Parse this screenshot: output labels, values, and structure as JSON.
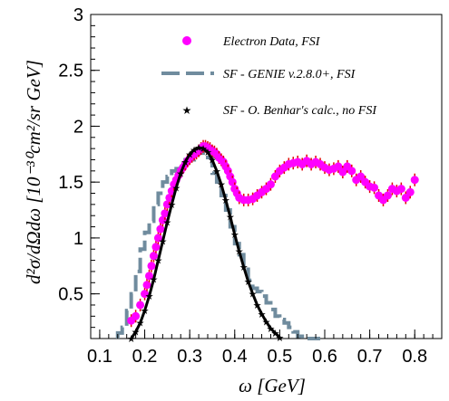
{
  "chart_data": {
    "type": "scatter",
    "title": "",
    "xlabel": "ω [GeV]",
    "ylabel": "d²σ/dΩdω [10⁻³⁰cm²/sr GeV]",
    "xlim": [
      0.08,
      0.86
    ],
    "ylim": [
      0.1,
      3.0
    ],
    "xticks": [
      "0.1",
      "0.2",
      "0.3",
      "0.4",
      "0.5",
      "0.6",
      "0.7",
      "0.8"
    ],
    "yticks": [
      "0.5",
      "1",
      "1.5",
      "2",
      "2.5",
      "3"
    ],
    "grid": false,
    "legend_position": "top-right",
    "series": [
      {
        "name": "Electron Data, FSI",
        "style": "markers",
        "color": "#ff00ff",
        "x": [
          0.17,
          0.18,
          0.19,
          0.2,
          0.205,
          0.21,
          0.215,
          0.22,
          0.225,
          0.23,
          0.235,
          0.24,
          0.245,
          0.25,
          0.255,
          0.26,
          0.265,
          0.27,
          0.275,
          0.28,
          0.285,
          0.29,
          0.295,
          0.3,
          0.305,
          0.31,
          0.315,
          0.32,
          0.325,
          0.33,
          0.335,
          0.34,
          0.345,
          0.35,
          0.355,
          0.36,
          0.365,
          0.37,
          0.375,
          0.38,
          0.385,
          0.39,
          0.395,
          0.4,
          0.405,
          0.41,
          0.42,
          0.43,
          0.44,
          0.45,
          0.46,
          0.47,
          0.48,
          0.49,
          0.5,
          0.51,
          0.52,
          0.53,
          0.54,
          0.55,
          0.56,
          0.57,
          0.58,
          0.59,
          0.6,
          0.61,
          0.62,
          0.63,
          0.64,
          0.65,
          0.66,
          0.67,
          0.68,
          0.69,
          0.7,
          0.71,
          0.72,
          0.73,
          0.74,
          0.75,
          0.76,
          0.77,
          0.78,
          0.79,
          0.8
        ],
        "y": [
          0.26,
          0.3,
          0.4,
          0.5,
          0.58,
          0.66,
          0.75,
          0.84,
          0.92,
          1.0,
          1.08,
          1.16,
          1.22,
          1.3,
          1.36,
          1.42,
          1.48,
          1.52,
          1.56,
          1.6,
          1.63,
          1.66,
          1.69,
          1.71,
          1.73,
          1.75,
          1.76,
          1.78,
          1.8,
          1.82,
          1.82,
          1.81,
          1.8,
          1.78,
          1.77,
          1.75,
          1.72,
          1.7,
          1.68,
          1.64,
          1.6,
          1.55,
          1.5,
          1.44,
          1.4,
          1.36,
          1.34,
          1.34,
          1.35,
          1.38,
          1.41,
          1.44,
          1.48,
          1.55,
          1.6,
          1.63,
          1.66,
          1.67,
          1.68,
          1.66,
          1.69,
          1.66,
          1.68,
          1.66,
          1.63,
          1.61,
          1.62,
          1.64,
          1.59,
          1.64,
          1.6,
          1.52,
          1.55,
          1.5,
          1.46,
          1.45,
          1.38,
          1.34,
          1.38,
          1.44,
          1.42,
          1.44,
          1.36,
          1.41,
          1.52
        ]
      },
      {
        "name": "SF - GENIE v.2.8.0+, FSI",
        "style": "step",
        "color": "#708c9e",
        "x": [
          0.14,
          0.15,
          0.16,
          0.17,
          0.18,
          0.19,
          0.2,
          0.21,
          0.22,
          0.23,
          0.24,
          0.25,
          0.26,
          0.27,
          0.28,
          0.29,
          0.3,
          0.31,
          0.32,
          0.33,
          0.34,
          0.35,
          0.36,
          0.37,
          0.38,
          0.39,
          0.4,
          0.41,
          0.42,
          0.43,
          0.44,
          0.45,
          0.46,
          0.47,
          0.48,
          0.49,
          0.5,
          0.51,
          0.52,
          0.53,
          0.54,
          0.55,
          0.56,
          0.57,
          0.58
        ],
        "y": [
          0.15,
          0.2,
          0.35,
          0.5,
          0.7,
          0.9,
          1.05,
          1.15,
          1.3,
          1.4,
          1.5,
          1.55,
          1.6,
          1.62,
          1.65,
          1.7,
          1.7,
          1.75,
          1.78,
          1.76,
          1.72,
          1.58,
          1.5,
          1.38,
          1.25,
          1.1,
          0.95,
          0.85,
          0.72,
          0.62,
          0.55,
          0.52,
          0.48,
          0.42,
          0.36,
          0.3,
          0.27,
          0.24,
          0.2,
          0.16,
          0.12,
          0.1,
          0.09,
          0.08,
          0.07
        ]
      },
      {
        "name": "SF - O. Benhar's calc., no FSI",
        "style": "line-stars",
        "color": "#000000",
        "x": [
          0.17,
          0.18,
          0.19,
          0.2,
          0.21,
          0.22,
          0.23,
          0.24,
          0.25,
          0.26,
          0.27,
          0.28,
          0.29,
          0.3,
          0.31,
          0.32,
          0.33,
          0.34,
          0.35,
          0.36,
          0.37,
          0.38,
          0.39,
          0.4,
          0.41,
          0.42,
          0.43,
          0.44,
          0.45,
          0.46,
          0.47,
          0.48,
          0.49,
          0.5,
          0.51,
          0.52,
          0.53,
          0.54,
          0.55,
          0.56,
          0.57,
          0.58,
          0.59
        ],
        "y": [
          0.1,
          0.16,
          0.24,
          0.35,
          0.48,
          0.63,
          0.8,
          0.97,
          1.14,
          1.3,
          1.45,
          1.58,
          1.68,
          1.75,
          1.79,
          1.81,
          1.8,
          1.77,
          1.7,
          1.6,
          1.48,
          1.34,
          1.19,
          1.03,
          0.88,
          0.74,
          0.61,
          0.5,
          0.4,
          0.32,
          0.25,
          0.19,
          0.15,
          0.11,
          0.08,
          0.06,
          0.05,
          0.04,
          0.03,
          0.02,
          0.02,
          0.01,
          0.01
        ]
      }
    ]
  }
}
